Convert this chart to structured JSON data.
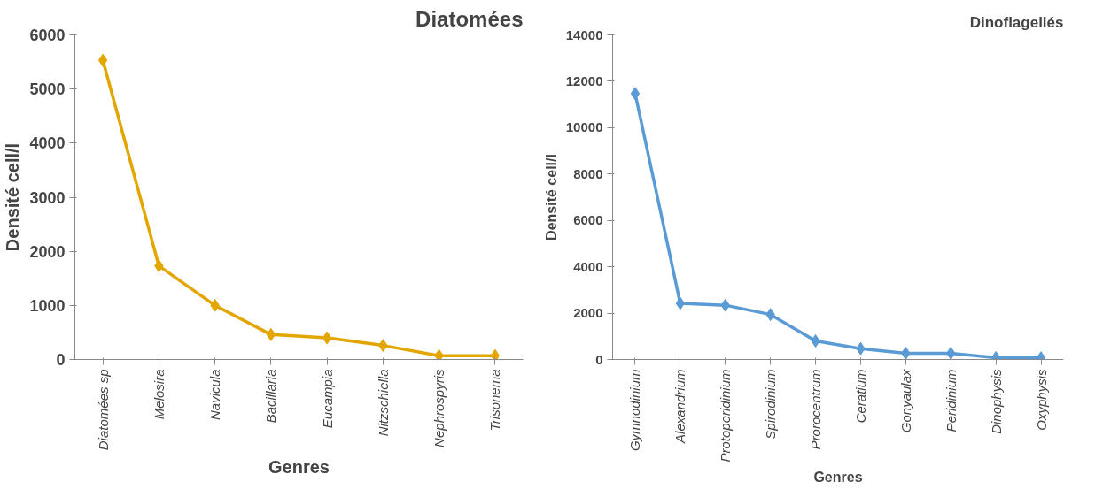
{
  "chart_data": [
    {
      "type": "line",
      "title": "Diatomées",
      "xlabel": "Genres",
      "ylabel": "Densité cell/l",
      "categories": [
        "Diatomées sp",
        "Melosira",
        "Navicula",
        "Bacillaria",
        "Eucampia",
        "Nitzschiella",
        "Nephrospyris",
        "Trisonema"
      ],
      "series": [
        {
          "color": "#e3a600",
          "values": [
            5530,
            1730,
            1000,
            460,
            400,
            260,
            70,
            70
          ]
        }
      ],
      "ylim": [
        0,
        6000
      ],
      "yticks": [
        0,
        1000,
        2000,
        3000,
        4000,
        5000,
        6000
      ],
      "grid": false,
      "marker": "diamond"
    },
    {
      "type": "line",
      "title": "Dinoflagellés",
      "xlabel": "Genres",
      "ylabel": "Densité cell/l",
      "categories": [
        "Gymnodinium",
        "Alexandrium",
        "Protoperidinium",
        "Spirodinium",
        "Prorocentrum",
        "Ceratium",
        "Gonyaulax",
        "Peridinium",
        "Dinophysis",
        "Oxyphysis"
      ],
      "series": [
        {
          "color": "#5b9bd5",
          "values": [
            11470,
            2420,
            2340,
            1940,
            800,
            470,
            270,
            270,
            80,
            70
          ]
        }
      ],
      "ylim": [
        0,
        14000
      ],
      "yticks": [
        0,
        2000,
        4000,
        6000,
        8000,
        10000,
        12000,
        14000
      ],
      "grid": false,
      "marker": "diamond"
    }
  ]
}
